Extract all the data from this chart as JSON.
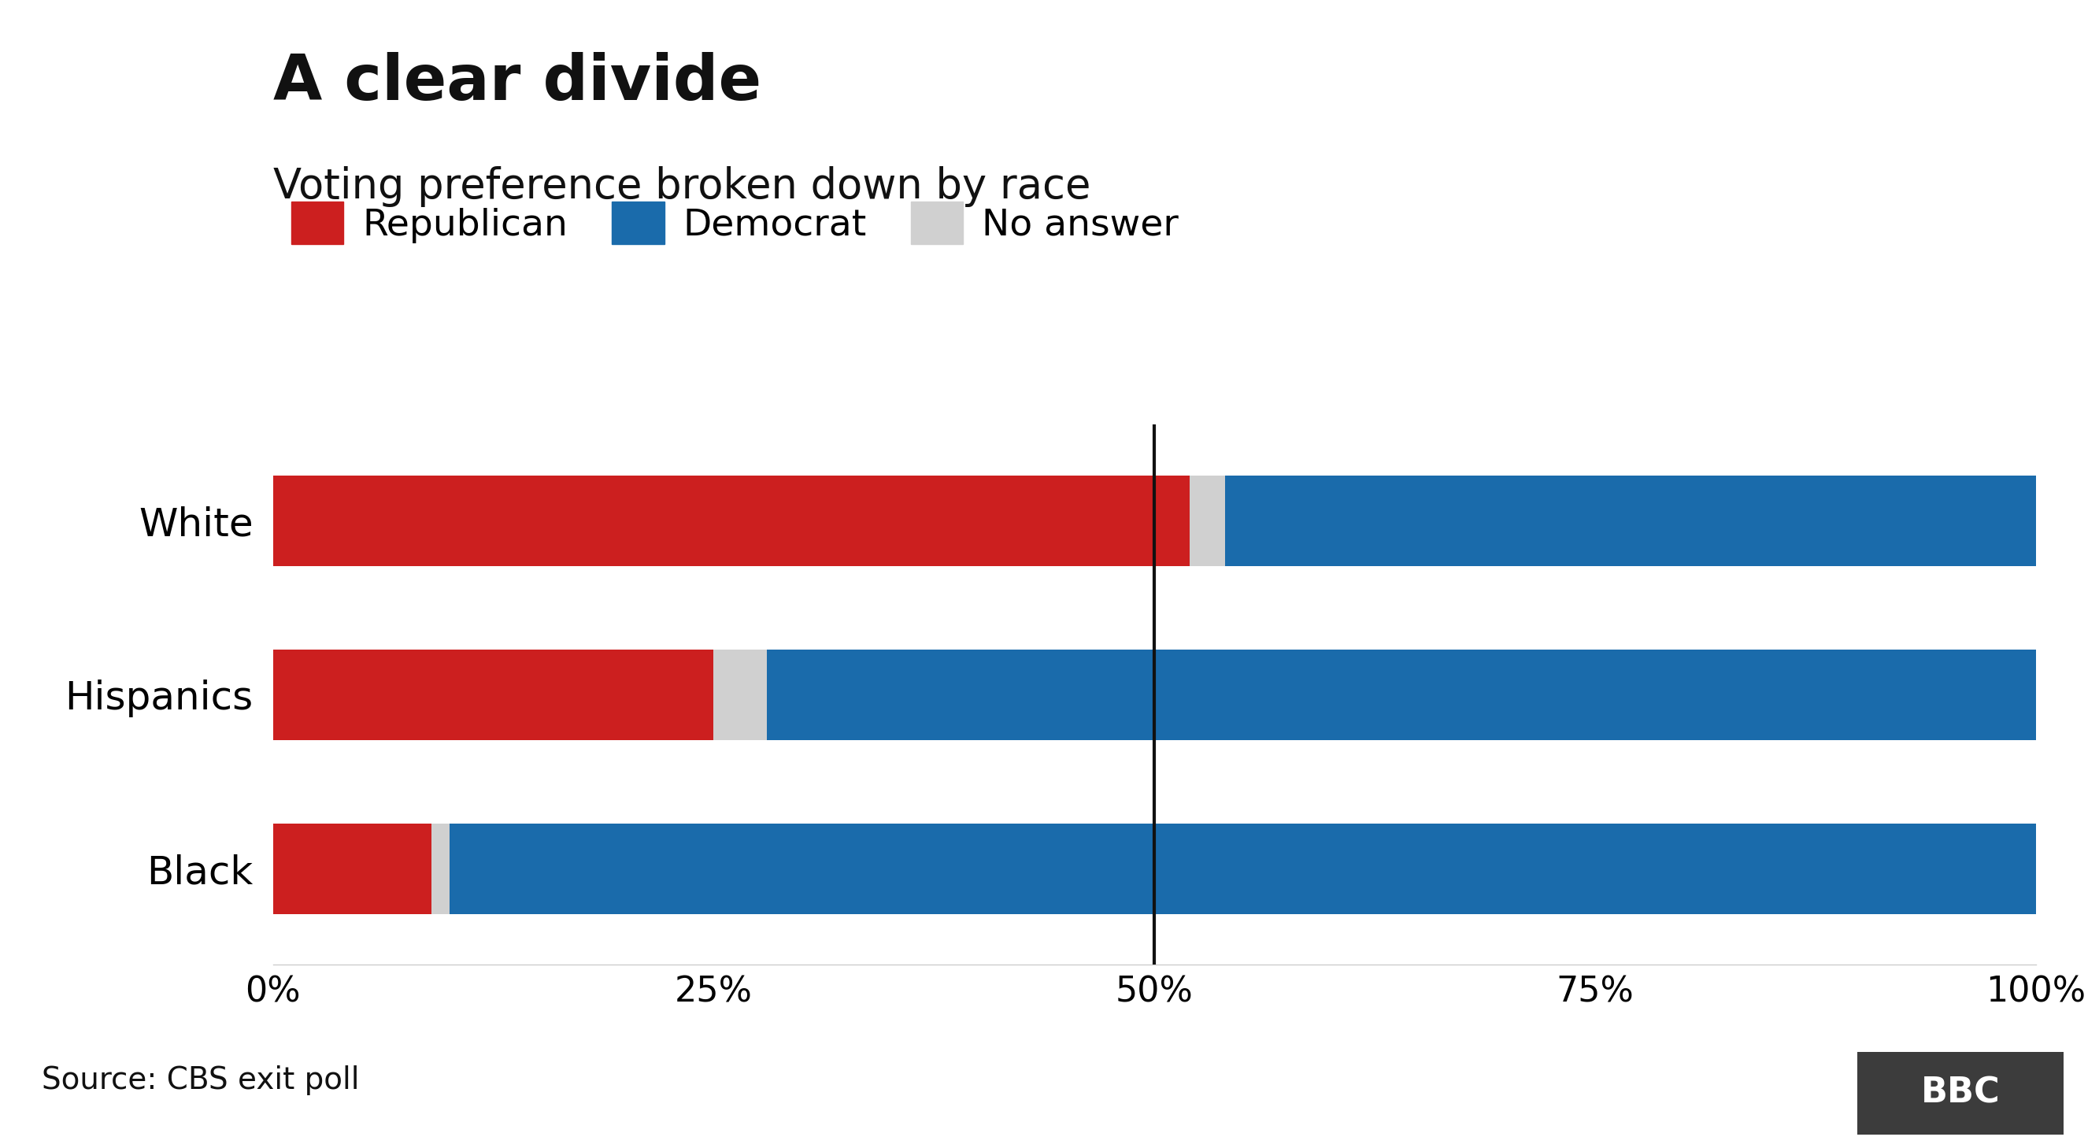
{
  "title": "A clear divide",
  "subtitle": "Voting preference broken down by race",
  "source": "Source: CBS exit poll",
  "categories": [
    "White",
    "Hispanics",
    "Black"
  ],
  "republican": [
    52,
    25,
    9
  ],
  "no_answer": [
    2,
    3,
    1
  ],
  "democrat": [
    46,
    72,
    90
  ],
  "colors": {
    "republican": "#cc1f1f",
    "democrat": "#1a6bab",
    "no_answer": "#d0d0d0",
    "background": "#ffffff",
    "vline": "#111111",
    "bottom_line": "#cccccc",
    "bbc_bg": "#3c3c3c"
  },
  "legend_labels": [
    "Republican",
    "Democrat",
    "No answer"
  ],
  "xlim": [
    0,
    100
  ],
  "xticks": [
    0,
    25,
    50,
    75,
    100
  ],
  "xticklabels": [
    "0%",
    "25%",
    "50%",
    "75%",
    "100%"
  ],
  "vline_x": 50,
  "title_fontsize": 58,
  "subtitle_fontsize": 38,
  "label_fontsize": 36,
  "tick_fontsize": 32,
  "source_fontsize": 28,
  "legend_fontsize": 34,
  "bar_height": 0.52
}
